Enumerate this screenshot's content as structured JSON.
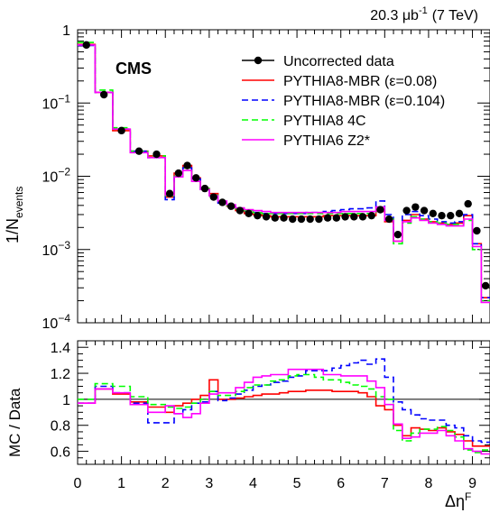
{
  "header": {
    "luminosity_value": "20.3 μb",
    "luminosity_exp": "-1",
    "energy": "(7 TeV)",
    "experiment_label": "CMS"
  },
  "chart_data": [
    {
      "type": "line",
      "panel": "top",
      "xlabel": "Δη",
      "xlabel_sup": "F",
      "ylabel": "1/N",
      "ylabel_sub": "events",
      "yscale": "log",
      "xlim": [
        0,
        9.4
      ],
      "ylim": [
        0.0001,
        1
      ],
      "y_tick_labels": [
        {
          "value": 1,
          "label": "1",
          "sup": ""
        },
        {
          "value": 0.1,
          "label": "10",
          "sup": "−1"
        },
        {
          "value": 0.01,
          "label": "10",
          "sup": "−2"
        },
        {
          "value": 0.001,
          "label": "10",
          "sup": "−3"
        },
        {
          "value": 0.0001,
          "label": "10",
          "sup": "−4"
        }
      ],
      "legend_position": "top-right",
      "bin_edges": [
        0,
        0.4,
        0.8,
        1.2,
        1.6,
        2.0,
        2.2,
        2.4,
        2.6,
        2.8,
        3.0,
        3.2,
        3.4,
        3.6,
        3.8,
        4.0,
        4.2,
        4.4,
        4.6,
        4.8,
        5.0,
        5.2,
        5.4,
        5.6,
        5.8,
        6.0,
        6.2,
        6.4,
        6.6,
        6.8,
        7.0,
        7.2,
        7.4,
        7.6,
        7.8,
        8.0,
        8.2,
        8.4,
        8.6,
        8.8,
        9.0,
        9.2,
        9.4
      ],
      "series": [
        {
          "name": "Uncorrected data",
          "style": "markers",
          "color": "#000000",
          "values": [
            0.62,
            0.13,
            0.042,
            0.022,
            0.02,
            0.0058,
            0.011,
            0.014,
            0.0095,
            0.0068,
            0.0052,
            0.0044,
            0.0039,
            0.0034,
            0.0031,
            0.0029,
            0.0028,
            0.0027,
            0.0027,
            0.0026,
            0.0026,
            0.0026,
            0.0026,
            0.0027,
            0.0027,
            0.0028,
            0.0028,
            0.0028,
            0.0029,
            0.0035,
            0.0026,
            0.0016,
            0.0034,
            0.0038,
            0.0034,
            0.0031,
            0.0029,
            0.0029,
            0.0031,
            0.0042,
            0.0018,
            0.00032
          ]
        },
        {
          "name": "PYTHIA8-MBR (ε=0.08)",
          "style": "solid",
          "color": "#ff0000",
          "values": [
            0.63,
            0.14,
            0.042,
            0.022,
            0.019,
            0.0052,
            0.011,
            0.014,
            0.0095,
            0.0068,
            0.0058,
            0.0044,
            0.0039,
            0.0034,
            0.0031,
            0.003,
            0.0029,
            0.0028,
            0.0028,
            0.0028,
            0.0028,
            0.0028,
            0.0028,
            0.0029,
            0.0029,
            0.0029,
            0.0029,
            0.0029,
            0.0029,
            0.0033,
            0.0024,
            0.0013,
            0.0025,
            0.003,
            0.0026,
            0.0024,
            0.0023,
            0.0022,
            0.0023,
            0.0029,
            0.0012,
            0.00022
          ]
        },
        {
          "name": "PYTHIA8-MBR (ε=0.104)",
          "style": "dashed",
          "color": "#0000ff",
          "values": [
            0.61,
            0.14,
            0.044,
            0.022,
            0.018,
            0.0048,
            0.0098,
            0.013,
            0.0092,
            0.0066,
            0.0055,
            0.0043,
            0.0039,
            0.0035,
            0.0033,
            0.0032,
            0.0031,
            0.0031,
            0.0031,
            0.0031,
            0.0031,
            0.0032,
            0.0032,
            0.0033,
            0.0034,
            0.0035,
            0.0036,
            0.0036,
            0.0037,
            0.0046,
            0.003,
            0.0016,
            0.003,
            0.0033,
            0.0029,
            0.0026,
            0.0024,
            0.0023,
            0.0024,
            0.003,
            0.0012,
            0.00022
          ]
        },
        {
          "name": "PYTHIA8 4C",
          "style": "dashed",
          "color": "#00ff00",
          "values": [
            0.67,
            0.15,
            0.046,
            0.022,
            0.019,
            0.0054,
            0.01,
            0.013,
            0.0092,
            0.0068,
            0.0055,
            0.0045,
            0.004,
            0.0036,
            0.0034,
            0.0032,
            0.0031,
            0.0031,
            0.0031,
            0.0031,
            0.0031,
            0.0031,
            0.0031,
            0.0031,
            0.0031,
            0.0031,
            0.0031,
            0.0031,
            0.0031,
            0.0035,
            0.0026,
            0.0012,
            0.0023,
            0.0028,
            0.0026,
            0.0024,
            0.0023,
            0.0022,
            0.0022,
            0.0025,
            0.001,
            0.0002
          ]
        },
        {
          "name": "PYTHIA6 Z2*",
          "style": "solid",
          "color": "#ff00ff",
          "values": [
            0.62,
            0.14,
            0.044,
            0.021,
            0.018,
            0.0055,
            0.0098,
            0.012,
            0.0085,
            0.0066,
            0.0054,
            0.0046,
            0.0041,
            0.0037,
            0.0035,
            0.0034,
            0.0033,
            0.0032,
            0.0032,
            0.0032,
            0.0032,
            0.0032,
            0.0032,
            0.0032,
            0.0032,
            0.0033,
            0.0033,
            0.0033,
            0.0033,
            0.0038,
            0.0025,
            0.0013,
            0.0024,
            0.0027,
            0.0025,
            0.0023,
            0.0022,
            0.0021,
            0.0021,
            0.0026,
            0.0011,
            0.00019
          ]
        }
      ]
    },
    {
      "type": "line",
      "panel": "bottom",
      "xlabel": "Δη",
      "xlabel_sup": "F",
      "ylabel": "MC / Data",
      "xlim": [
        0,
        9.4
      ],
      "ylim": [
        0.5,
        1.45
      ],
      "x_ticks": [
        0,
        1,
        2,
        3,
        4,
        5,
        6,
        7,
        8,
        9
      ],
      "y_ticks": [
        0.6,
        0.8,
        1,
        1.2,
        1.4
      ],
      "reference_line": 1,
      "bin_edges": [
        0,
        0.4,
        0.8,
        1.2,
        1.6,
        2.0,
        2.2,
        2.4,
        2.6,
        2.8,
        3.0,
        3.2,
        3.4,
        3.6,
        3.8,
        4.0,
        4.2,
        4.4,
        4.6,
        4.8,
        5.0,
        5.2,
        5.4,
        5.6,
        5.8,
        6.0,
        6.2,
        6.4,
        6.6,
        6.8,
        7.0,
        7.2,
        7.4,
        7.6,
        7.8,
        8.0,
        8.2,
        8.4,
        8.6,
        8.8,
        9.0,
        9.2,
        9.4
      ],
      "series": [
        {
          "name": "PYTHIA8-MBR (ε=0.08)",
          "style": "solid",
          "color": "#ff0000",
          "values": [
            0.97,
            1.08,
            1.04,
            0.98,
            0.94,
            0.9,
            0.95,
            0.97,
            1.0,
            1.03,
            1.15,
            1.0,
            1.0,
            1.01,
            1.02,
            1.03,
            1.04,
            1.04,
            1.05,
            1.06,
            1.06,
            1.07,
            1.07,
            1.07,
            1.06,
            1.06,
            1.06,
            1.05,
            1.02,
            0.95,
            0.92,
            0.8,
            0.72,
            0.78,
            0.77,
            0.76,
            0.78,
            0.75,
            0.73,
            0.68,
            0.64,
            0.64
          ]
        },
        {
          "name": "PYTHIA8-MBR (ε=0.104)",
          "style": "dashed",
          "color": "#0000ff",
          "values": [
            0.97,
            1.1,
            1.05,
            0.97,
            0.82,
            0.82,
            0.89,
            0.92,
            0.97,
            0.98,
            1.06,
            0.99,
            1.01,
            1.04,
            1.07,
            1.1,
            1.11,
            1.13,
            1.14,
            1.17,
            1.18,
            1.22,
            1.22,
            1.22,
            1.24,
            1.26,
            1.28,
            1.3,
            1.27,
            1.31,
            1.17,
            0.98,
            0.92,
            0.88,
            0.85,
            0.84,
            0.84,
            0.8,
            0.78,
            0.72,
            0.68,
            0.67
          ]
        },
        {
          "name": "PYTHIA8 4C",
          "style": "dashed",
          "color": "#00ff00",
          "values": [
            1.0,
            1.12,
            1.1,
            1.02,
            0.96,
            0.94,
            0.93,
            0.94,
            0.97,
            1.0,
            1.06,
            1.03,
            1.03,
            1.06,
            1.09,
            1.11,
            1.11,
            1.14,
            1.15,
            1.18,
            1.19,
            1.19,
            1.17,
            1.15,
            1.15,
            1.13,
            1.11,
            1.1,
            1.08,
            1.02,
            1.0,
            0.76,
            0.68,
            0.74,
            0.77,
            0.77,
            0.79,
            0.76,
            0.71,
            0.61,
            0.59,
            0.61
          ]
        },
        {
          "name": "PYTHIA6 Z2*",
          "style": "solid",
          "color": "#ff00ff",
          "values": [
            0.97,
            1.08,
            1.05,
            0.96,
            0.9,
            0.95,
            0.89,
            0.86,
            0.89,
            0.97,
            1.04,
            1.05,
            1.05,
            1.09,
            1.13,
            1.17,
            1.18,
            1.19,
            1.19,
            1.23,
            1.23,
            1.23,
            1.23,
            1.19,
            1.19,
            1.18,
            1.18,
            1.18,
            1.14,
            1.09,
            0.96,
            0.81,
            0.7,
            0.71,
            0.74,
            0.74,
            0.76,
            0.72,
            0.68,
            0.62,
            0.6,
            0.58
          ]
        }
      ]
    }
  ]
}
